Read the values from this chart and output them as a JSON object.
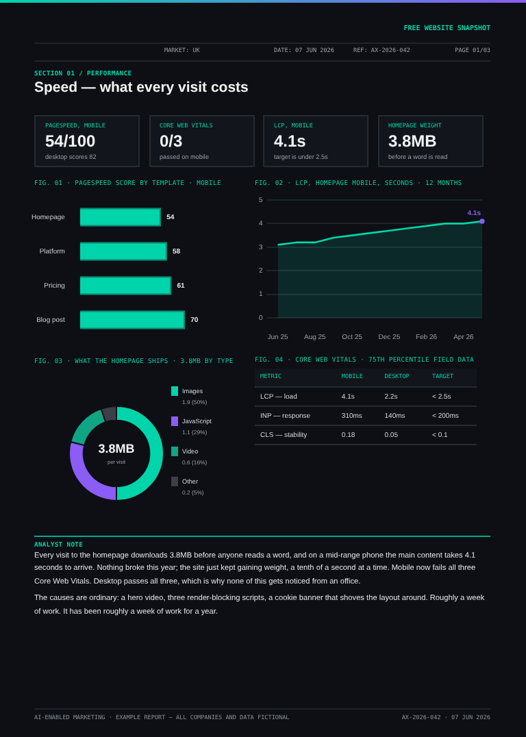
{
  "chart_data": [
    {
      "type": "other",
      "subtitle": "SECTION 01 / PERFORMANCE",
      "title": "Speed — what every visit costs",
      "annotations": [
        "FREE WEBSITE SNAPSHOT",
        "MARKET: UK",
        "DATE: 07 JUN 2026",
        "REF: AX-2026-042",
        "PAGE 01/03"
      ]
    },
    {
      "type": "other",
      "annotations": [
        "PAGESPEED, MOBILE",
        "54/100",
        "desktop scores 82",
        "CORE WEB VITALS",
        "0/3",
        "passed on mobile",
        "LCP, MOBILE",
        "4.1s",
        "target is under 2.5s",
        "HOMEPAGE WEIGHT",
        "3.8MB",
        "before a word is read"
      ]
    },
    {
      "type": "bar",
      "orientation": "horizontal",
      "title": "FIG. 01 · PAGESPEED SCORE BY TEMPLATE · MOBILE",
      "categories": [
        "Homepage",
        "Platform",
        "Pricing",
        "Blog post"
      ],
      "values": [
        54,
        58,
        61,
        70
      ],
      "color": "#00d4aa",
      "data_labels": true,
      "grid": false
    },
    {
      "type": "area",
      "title": "FIG. 02 · LCP, HOMEPAGE MOBILE, SECONDS · 12 MONTHS",
      "categories": [
        "Jun 25",
        null,
        "Aug 25",
        null,
        "Oct 25",
        null,
        "Dec 25",
        null,
        "Feb 26",
        null,
        "Apr 26",
        null
      ],
      "values": [
        3.1,
        3.2,
        3.2,
        3.4,
        3.5,
        3.6,
        3.7,
        3.8,
        3.9,
        4.0,
        4.0,
        4.1
      ],
      "color": "#00d4aa",
      "ylim": [
        0,
        5
      ],
      "yticks": [
        0,
        1,
        2,
        3,
        4,
        5
      ],
      "grid": "y",
      "annotations": [
        {
          "text": "4.1s",
          "y": 4.1
        }
      ]
    },
    {
      "type": "donut",
      "title": "FIG. 03 · WHAT THE HOMEPAGE SHIPS · 3.8MB BY TYPE",
      "categories": [
        "Images",
        "JavaScript",
        "Video",
        "Other"
      ],
      "values": [
        1.9,
        1.1,
        0.6,
        0.2
      ],
      "colors": [
        "#00d4aa",
        "#8b5cf6",
        "#10a585",
        "#3a3f4a"
      ],
      "value_labels": [
        "1.9 (50%)",
        "1.1 (29%)",
        "0.6 (16%)",
        "0.2 (5%)"
      ],
      "legend": "right",
      "annotations": [
        "3.8MB",
        "per visit"
      ]
    },
    {
      "type": "other",
      "title": "FIG. 04 · CORE WEB VITALS · 75TH PERCENTILE FIELD DATA",
      "annotations": [
        "METRIC",
        "MOBILE",
        "DESKTOP",
        "TARGET",
        "LCP — load",
        "4.1s",
        "2.2s",
        "< 2.5s",
        "INP — response",
        "310ms",
        "140ms",
        "< 200ms",
        "CLS — stability",
        "0.18",
        "0.05",
        "< 0.1"
      ]
    },
    {
      "type": "other",
      "title": "ANALYST NOTE",
      "annotations": [
        "Every visit to the homepage downloads 3.8MB before anyone reads a word, and on a mid-range phone the main content takes 4.1 seconds to arrive. Nothing broke this year; the site just kept gaining weight, a tenth of a second at a time. Mobile now fails all three Core Web Vitals. Desktop passes all three, which is why none of this gets noticed from an office.",
        "The causes are ordinary: a hero video, three render-blocking scripts, a cookie banner that shoves the layout around. Roughly a week of work. It has been roughly a week of work for a year."
      ]
    },
    {
      "type": "other",
      "annotations": [
        "AI-ENABLED MARKETING · EXAMPLE REPORT — ALL COMPANIES AND DATA FICTIONAL",
        "AX-2026-042 · 07 JUN 2026"
      ]
    }
  ]
}
